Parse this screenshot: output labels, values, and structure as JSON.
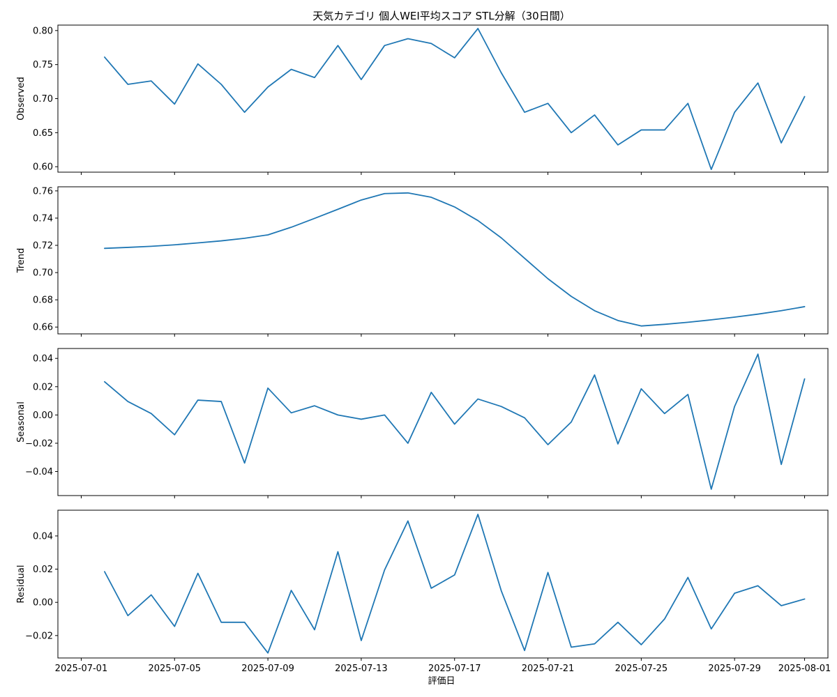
{
  "chart_data": {
    "type": "line",
    "title": "天気カテゴリ 個人WEI平均スコア STL分解（30日間）",
    "xlabel": "評価日",
    "x": [
      "2025-07-02",
      "2025-07-03",
      "2025-07-04",
      "2025-07-05",
      "2025-07-06",
      "2025-07-07",
      "2025-07-08",
      "2025-07-09",
      "2025-07-10",
      "2025-07-11",
      "2025-07-12",
      "2025-07-13",
      "2025-07-14",
      "2025-07-15",
      "2025-07-16",
      "2025-07-17",
      "2025-07-18",
      "2025-07-19",
      "2025-07-20",
      "2025-07-21",
      "2025-07-22",
      "2025-07-23",
      "2025-07-24",
      "2025-07-25",
      "2025-07-26",
      "2025-07-27",
      "2025-07-28",
      "2025-07-29",
      "2025-07-30",
      "2025-07-31",
      "2025-08-01"
    ],
    "x_ticks": [
      "2025-07-01",
      "2025-07-05",
      "2025-07-09",
      "2025-07-13",
      "2025-07-17",
      "2025-07-21",
      "2025-07-25",
      "2025-07-29",
      "2025-08-01"
    ],
    "x_range": [
      "2025-06-30",
      "2025-08-02"
    ],
    "line_color": "#1f77b4",
    "grid": false,
    "panels": [
      {
        "ylabel": "Observed",
        "ylim": [
          0.592,
          0.808
        ],
        "yticks": [
          "0.60",
          "0.65",
          "0.70",
          "0.75",
          "0.80"
        ],
        "values": [
          0.761,
          0.721,
          0.726,
          0.692,
          0.751,
          0.721,
          0.68,
          0.717,
          0.743,
          0.731,
          0.778,
          0.728,
          0.778,
          0.788,
          0.781,
          0.76,
          0.803,
          0.738,
          0.68,
          0.693,
          0.65,
          0.676,
          0.632,
          0.654,
          0.654,
          0.693,
          0.596,
          0.68,
          0.723,
          0.635,
          0.703
        ]
      },
      {
        "ylabel": "Trend",
        "ylim": [
          0.655,
          0.763
        ],
        "yticks": [
          "0.66",
          "0.68",
          "0.70",
          "0.72",
          "0.74",
          "0.76"
        ],
        "values": [
          0.7178,
          0.7185,
          0.7193,
          0.7204,
          0.7218,
          0.7233,
          0.7252,
          0.7277,
          0.7333,
          0.7398,
          0.7465,
          0.7533,
          0.758,
          0.7585,
          0.7553,
          0.7482,
          0.7382,
          0.7255,
          0.7105,
          0.6955,
          0.6825,
          0.672,
          0.6648,
          0.6608,
          0.662,
          0.6635,
          0.6653,
          0.6673,
          0.6695,
          0.672,
          0.675
        ]
      },
      {
        "ylabel": "Seasonal",
        "ylim": [
          -0.057,
          0.047
        ],
        "yticks": [
          "−0.04",
          "−0.02",
          "0.00",
          "0.02",
          "0.04"
        ],
        "values": [
          0.0235,
          0.0095,
          0.001,
          -0.014,
          0.0105,
          0.0095,
          -0.034,
          0.019,
          0.0015,
          0.0065,
          0.0,
          -0.003,
          0.0,
          -0.02,
          0.016,
          -0.0065,
          0.0113,
          0.006,
          -0.002,
          -0.021,
          -0.005,
          0.0283,
          -0.0205,
          0.0185,
          0.001,
          0.0145,
          -0.0525,
          0.006,
          0.043,
          -0.035,
          0.0255
        ]
      },
      {
        "ylabel": "Residual",
        "ylim": [
          -0.0335,
          0.0555
        ],
        "yticks": [
          "−0.02",
          "0.00",
          "0.02",
          "0.04"
        ],
        "values": [
          0.0185,
          -0.008,
          0.0045,
          -0.0145,
          0.0175,
          -0.012,
          -0.012,
          -0.0305,
          0.0072,
          -0.0165,
          0.0305,
          -0.023,
          0.0195,
          0.049,
          0.0085,
          0.0165,
          0.053,
          0.007,
          -0.029,
          0.018,
          -0.027,
          -0.025,
          -0.012,
          -0.0255,
          -0.01,
          0.015,
          -0.016,
          0.0055,
          0.01,
          -0.002,
          0.002
        ]
      }
    ]
  }
}
